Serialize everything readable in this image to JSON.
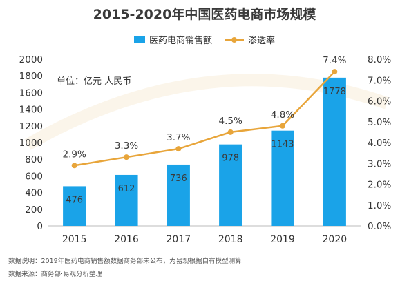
{
  "title": "2015-2020年中国医药电商市场规模",
  "unit_label": "单位：亿元 人民币",
  "notes": {
    "explanation": "数据说明：2019年医药电商销售额数据商务部未公布，为易观根据自有模型测算",
    "source": "数据来源：商务部·易观分析整理"
  },
  "colors": {
    "bar": "#1aa3e8",
    "line": "#e8a53a",
    "watermark": "#d8d8d8"
  },
  "chart_data": {
    "type": "bar",
    "categories": [
      "2015",
      "2016",
      "2017",
      "2018",
      "2019",
      "2020"
    ],
    "series": [
      {
        "name": "医药电商销售额",
        "type": "bar",
        "axis": "left",
        "values": [
          476,
          612,
          736,
          978,
          1143,
          1778
        ],
        "labels": [
          "476",
          "612",
          "736",
          "978",
          "1143",
          "1778"
        ]
      },
      {
        "name": "渗透率",
        "type": "line",
        "axis": "right",
        "values": [
          2.9,
          3.3,
          3.7,
          4.5,
          4.8,
          7.4
        ],
        "labels": [
          "2.9%",
          "3.3%",
          "3.7%",
          "4.5%",
          "4.8%",
          "7.4%"
        ]
      }
    ],
    "y_left": {
      "range": [
        0,
        2000
      ],
      "ticks": [
        "0",
        "200",
        "400",
        "600",
        "800",
        "1000",
        "1200",
        "1400",
        "1600",
        "1800",
        "2000"
      ]
    },
    "y_right": {
      "range": [
        0,
        8
      ],
      "ticks": [
        "0.0%",
        "1.0%",
        "2.0%",
        "3.0%",
        "4.0%",
        "5.0%",
        "6.0%",
        "7.0%",
        "8.0%"
      ]
    },
    "grid": false,
    "legend": "top"
  }
}
